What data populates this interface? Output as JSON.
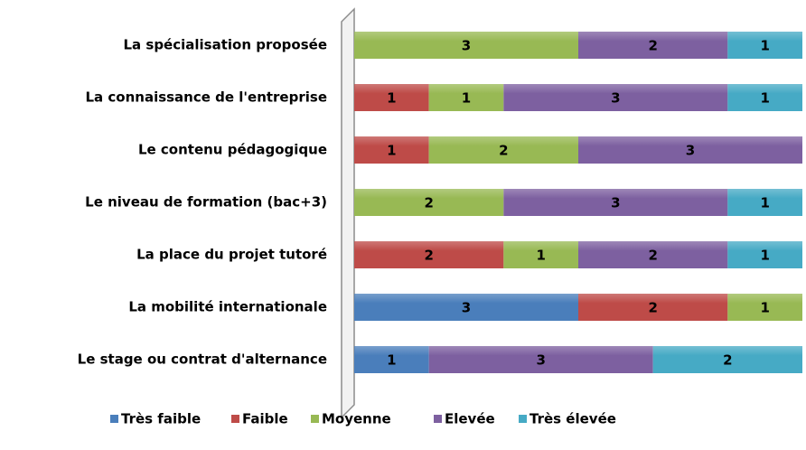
{
  "chart_data": {
    "type": "stacked_bar_horizontal",
    "categories": [
      "La spécialisation proposée",
      "La connaissance de l'entreprise",
      "Le contenu pédagogique",
      "Le niveau de formation (bac+3)",
      "La place du projet tutoré",
      "La mobilité internationale",
      "Le stage ou contrat d'alternance"
    ],
    "series": [
      {
        "name": "Très faible",
        "color": "#4a7ebb",
        "values": [
          null,
          null,
          null,
          null,
          null,
          3,
          1
        ]
      },
      {
        "name": "Faible",
        "color": "#be4b48",
        "values": [
          null,
          1,
          1,
          null,
          2,
          2,
          null
        ]
      },
      {
        "name": "Moyenne",
        "color": "#98b954",
        "values": [
          3,
          1,
          2,
          2,
          1,
          1,
          null
        ]
      },
      {
        "name": "Elevée",
        "color": "#7d60a0",
        "values": [
          2,
          3,
          3,
          3,
          2,
          null,
          3
        ]
      },
      {
        "name": "Très élevée",
        "color": "#46aac5",
        "values": [
          1,
          1,
          null,
          1,
          1,
          null,
          2
        ]
      }
    ],
    "xlim": [
      0,
      6
    ],
    "legend": "bottom"
  }
}
